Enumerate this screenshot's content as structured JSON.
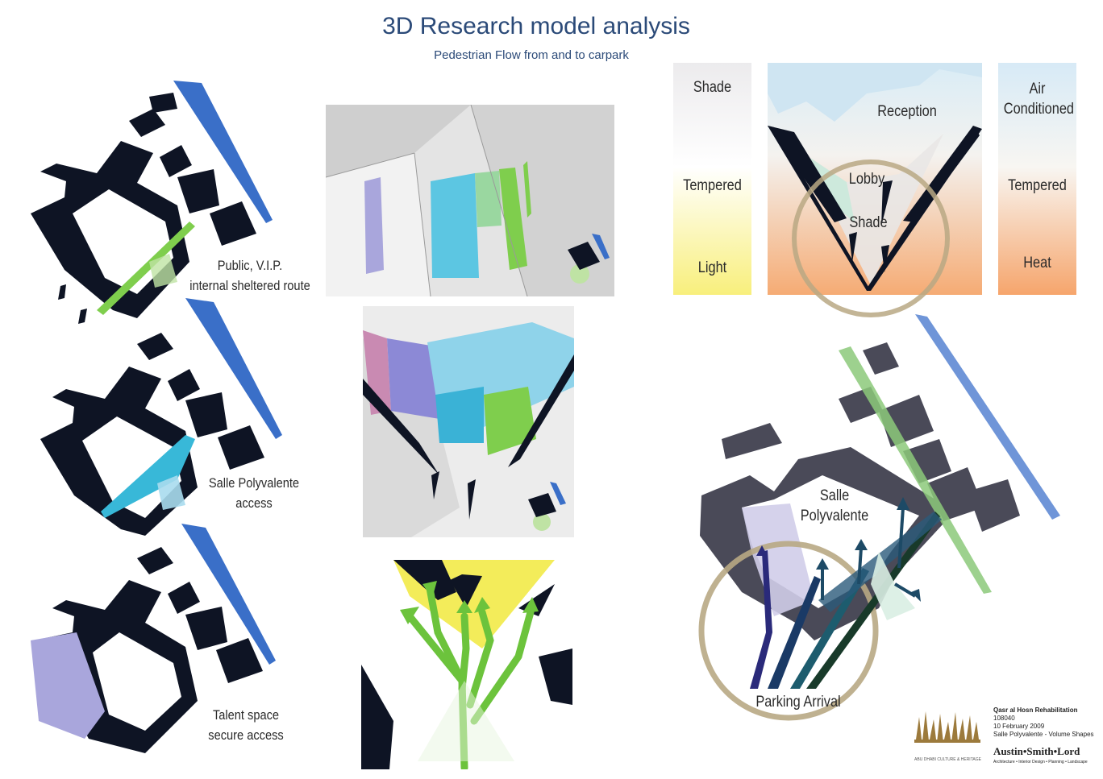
{
  "title": "3D Research model analysis",
  "subtitle": "Pedestrian Flow from and to carpark",
  "plans": [
    {
      "caption_line1": "Public, V.I.P.",
      "caption_line2": "internal sheltered route"
    },
    {
      "caption_line1": "Salle Polyvalente",
      "caption_line2": "access"
    },
    {
      "caption_line1": "Talent space",
      "caption_line2": "secure access"
    }
  ],
  "thermal": {
    "left_labels": [
      "Shade",
      "Tempered",
      "Light"
    ],
    "center_labels": [
      "Reception",
      "Lobby",
      "Shade"
    ],
    "right_labels": [
      "Air Conditioned",
      "Tempered",
      "Heat"
    ]
  },
  "site_plan": {
    "labels": [
      "Salle",
      "Polyvalente",
      "Parking Arrival"
    ]
  },
  "footer": {
    "project": "Qasr al Hosn Rehabilitation",
    "number": "108040",
    "date": "10 February 2009",
    "sheet": "Salle Polyvalente - Volume Shapes",
    "firm": "Austin•Smith•Lord",
    "firm_sub": "Architecture • Interior Design • Planning • Landscape",
    "client_logo_text": "ABU DHABI CULTURE & HERITAGE"
  },
  "colors": {
    "navy": "#0e1424",
    "water": "#3a6fc8",
    "green": "#7fce4d",
    "cyan": "#38b8d8",
    "lavender": "#a9a6dc",
    "yellow": "#f3ec5a",
    "orange": "#f6b07a",
    "sky": "#dcecf6",
    "ring": "#b8a884"
  }
}
